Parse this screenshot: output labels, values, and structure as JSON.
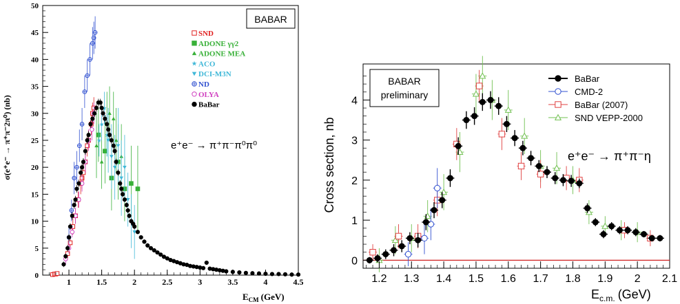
{
  "chart_data": [
    {
      "type": "scatter",
      "badge": "BABAR",
      "ylabel": "σ(e⁺e⁻ → π⁺π⁻2π⁰) (nb)",
      "xlabel": "E_CM (GeV)",
      "xlabel_main": "E",
      "xlabel_sub": "CM",
      "xlabel_unit": "(GeV)",
      "xlim": [
        0.6,
        4.5
      ],
      "ylim": [
        0,
        50
      ],
      "xticks": [
        "1",
        "1.5",
        "2",
        "2.5",
        "3",
        "3.5",
        "4",
        "4.5"
      ],
      "xtick_values": [
        1,
        1.5,
        2,
        2.5,
        3,
        3.5,
        4,
        4.5
      ],
      "yticks": [
        "0",
        "5",
        "10",
        "15",
        "20",
        "25",
        "30",
        "35",
        "40",
        "45",
        "50"
      ],
      "ytick_values": [
        0,
        5,
        10,
        15,
        20,
        25,
        30,
        35,
        40,
        45,
        50
      ],
      "reaction": "e⁺e⁻ → π⁺π⁻π⁰π⁰",
      "legend": [
        {
          "name": "SND",
          "marker": "□",
          "color": "#e02020"
        },
        {
          "name": "ADONE γγ2",
          "marker": "■",
          "color": "#38b038"
        },
        {
          "name": "ADONE MEA",
          "marker": "▲",
          "color": "#38b038"
        },
        {
          "name": "ACO",
          "marker": "★",
          "color": "#40b8d8"
        },
        {
          "name": "DCI-M3N",
          "marker": "▼",
          "color": "#40b8d8"
        },
        {
          "name": "ND",
          "marker": "⊕",
          "color": "#3050d0"
        },
        {
          "name": "OLYA",
          "marker": "○",
          "color": "#d040c0"
        },
        {
          "name": "BaBar",
          "marker": "●",
          "color": "#000000"
        }
      ],
      "series": [
        {
          "name": "SND",
          "color": "#e02020",
          "x": [
            0.75,
            0.78,
            0.8,
            0.82,
            0.98,
            1.02,
            1.06,
            1.1,
            1.14,
            1.18,
            1.2,
            1.22,
            1.25,
            1.28,
            1.3,
            1.34,
            1.36,
            1.38
          ],
          "y": [
            0.1,
            0.2,
            0.2,
            0.3,
            4,
            6,
            9,
            11,
            14,
            17,
            18,
            19,
            21,
            24,
            25,
            28,
            30,
            31
          ],
          "err": [
            0.1,
            0.1,
            0.1,
            0.2,
            1,
            1,
            1.5,
            1.5,
            1.5,
            2,
            2,
            2,
            2,
            2,
            2,
            2,
            2,
            2
          ]
        },
        {
          "name": "ADONE γγ2",
          "color": "#38b038",
          "x": [
            1.45,
            1.55,
            1.65,
            1.75,
            1.85,
            1.95,
            2.05
          ],
          "y": [
            26,
            23,
            18,
            21,
            16,
            17,
            16
          ],
          "err": [
            5,
            6,
            6,
            7,
            6,
            7,
            8
          ]
        },
        {
          "name": "ADONE MEA",
          "color": "#38b038",
          "x": [
            1.42,
            1.5,
            1.58,
            1.62,
            1.68,
            1.72,
            1.8
          ],
          "y": [
            24,
            21,
            28,
            30,
            29,
            25,
            22
          ],
          "err": [
            6,
            5,
            6,
            5,
            5,
            6,
            6
          ]
        },
        {
          "name": "ACO",
          "color": "#40b8d8",
          "x": [
            1.46,
            1.5,
            1.54,
            1.58
          ],
          "y": [
            25,
            28,
            31,
            26
          ],
          "err": [
            3,
            3,
            3,
            4
          ]
        },
        {
          "name": "DCI-M3N",
          "color": "#40b8d8",
          "x": [
            1.6,
            1.65,
            1.7,
            1.75,
            1.8,
            1.85,
            1.9,
            1.95,
            2.0
          ],
          "y": [
            25,
            22,
            20,
            24,
            18,
            20,
            14,
            10,
            8
          ],
          "err": [
            6,
            6,
            6,
            7,
            7,
            6,
            5,
            5,
            5
          ]
        },
        {
          "name": "ND",
          "color": "#3050d0",
          "x": [
            1.0,
            1.04,
            1.08,
            1.12,
            1.16,
            1.2,
            1.24,
            1.28,
            1.32,
            1.36,
            1.38,
            1.4
          ],
          "y": [
            7,
            12,
            18,
            20,
            24,
            28,
            34,
            37,
            40,
            43,
            44,
            45
          ],
          "err": [
            2,
            2,
            3,
            3,
            3,
            3,
            3,
            3,
            3,
            3,
            3,
            3
          ]
        },
        {
          "name": "OLYA",
          "color": "#d040c0",
          "x": [
            0.95,
            1.0,
            1.05,
            1.1,
            1.15,
            1.2,
            1.25,
            1.3,
            1.35,
            1.38
          ],
          "y": [
            3,
            5,
            8,
            11,
            14,
            17,
            21,
            25,
            27,
            30
          ],
          "err": [
            1,
            1,
            1,
            1.5,
            1.5,
            1.5,
            2,
            2,
            2,
            2
          ]
        },
        {
          "name": "BaBar",
          "color": "#000000",
          "x": [
            0.92,
            0.95,
            0.98,
            1.0,
            1.02,
            1.05,
            1.08,
            1.1,
            1.12,
            1.15,
            1.18,
            1.2,
            1.22,
            1.25,
            1.28,
            1.3,
            1.33,
            1.36,
            1.39,
            1.42,
            1.45,
            1.48,
            1.5,
            1.52,
            1.55,
            1.58,
            1.6,
            1.62,
            1.65,
            1.68,
            1.7,
            1.72,
            1.75,
            1.78,
            1.8,
            1.82,
            1.85,
            1.88,
            1.9,
            1.92,
            1.95,
            1.98,
            2.0,
            2.05,
            2.1,
            2.15,
            2.2,
            2.25,
            2.3,
            2.35,
            2.4,
            2.45,
            2.5,
            2.55,
            2.6,
            2.65,
            2.7,
            2.75,
            2.8,
            2.85,
            2.9,
            2.95,
            3.0,
            3.05,
            3.1,
            3.15,
            3.2,
            3.25,
            3.3,
            3.35,
            3.4,
            3.5,
            3.6,
            3.7,
            3.8,
            3.9,
            4.0,
            4.1,
            4.2,
            4.3,
            4.4,
            4.5
          ],
          "y": [
            2,
            3.5,
            5,
            7,
            9,
            11,
            13,
            14,
            16,
            17,
            19,
            20,
            21,
            23,
            25,
            26,
            28,
            29,
            30,
            31,
            32,
            32,
            31,
            30,
            29,
            28,
            27,
            26,
            25,
            24,
            23,
            21,
            19,
            17,
            16,
            15,
            14,
            13,
            12,
            11,
            10,
            9.5,
            9,
            8,
            7,
            6.2,
            5.5,
            5,
            4.6,
            4.2,
            3.8,
            3.4,
            3.1,
            2.8,
            2.6,
            2.4,
            2.2,
            2.0,
            1.9,
            1.7,
            1.6,
            1.5,
            1.4,
            1.3,
            2.3,
            1.2,
            1.1,
            1.0,
            0.9,
            0.8,
            0.7,
            0.6,
            0.5,
            0.4,
            0.35,
            0.3,
            0.25,
            0.2,
            0.2,
            0.15,
            0.1,
            0.1
          ],
          "err": [
            0.5,
            0.5,
            0.6,
            0.6,
            0.6,
            0.7,
            0.7,
            0.7,
            0.7,
            0.7,
            0.7,
            0.7,
            0.7,
            0.7,
            0.7,
            0.7,
            0.7,
            0.7,
            0.7,
            0.7,
            0.7,
            0.7,
            0.7,
            0.7,
            0.7,
            0.7,
            0.7,
            0.7,
            0.7,
            0.7,
            0.7,
            0.6,
            0.6,
            0.6,
            0.6,
            0.6,
            0.5,
            0.5,
            0.5,
            0.5,
            0.5,
            0.5,
            0.5,
            0.4,
            0.4,
            0.4,
            0.4,
            0.3,
            0.3,
            0.3,
            0.3,
            0.3,
            0.3,
            0.3,
            0.2,
            0.2,
            0.2,
            0.2,
            0.2,
            0.2,
            0.2,
            0.2,
            0.2,
            0.2,
            0.3,
            0.2,
            0.2,
            0.2,
            0.2,
            0.1,
            0.1,
            0.1,
            0.1,
            0.1,
            0.1,
            0.1,
            0.1,
            0.1,
            0.1,
            0.1,
            0.1,
            0.1
          ]
        }
      ]
    },
    {
      "type": "scatter",
      "badge_lines": [
        "BABAR",
        "preliminary"
      ],
      "ylabel": "Cross section, nb",
      "xlabel": "E_c.m. (GeV)",
      "xlabel_main": "E",
      "xlabel_sub": "c.m.",
      "xlabel_unit": "(GeV)",
      "xlim": [
        1.15,
        2.1
      ],
      "ylim": [
        -0.2,
        4.9
      ],
      "xticks": [
        "1.2",
        "1.3",
        "1.4",
        "1.5",
        "1.6",
        "1.7",
        "1.8",
        "1.9",
        "2",
        "2.1"
      ],
      "xtick_values": [
        1.2,
        1.3,
        1.4,
        1.5,
        1.6,
        1.7,
        1.8,
        1.9,
        2.0,
        2.1
      ],
      "yticks": [
        "0",
        "1",
        "2",
        "3",
        "4"
      ],
      "ytick_values": [
        0,
        1,
        2,
        3,
        4
      ],
      "reaction": "e⁺e⁻ → π⁺π⁻η",
      "zero_line_color": "#d02020",
      "legend": [
        {
          "name": "BaBar",
          "marker": "●",
          "color": "#000000"
        },
        {
          "name": "CMD-2",
          "marker": "○",
          "color": "#3050d0"
        },
        {
          "name": "BaBar (2007)",
          "marker": "□",
          "color": "#e04040"
        },
        {
          "name": "SND VEPP-2000",
          "marker": "△",
          "color": "#70c050"
        }
      ],
      "series": [
        {
          "name": "BaBar",
          "color": "#000000",
          "x": [
            1.17,
            1.195,
            1.22,
            1.245,
            1.27,
            1.295,
            1.32,
            1.345,
            1.37,
            1.395,
            1.42,
            1.445,
            1.47,
            1.495,
            1.52,
            1.545,
            1.57,
            1.595,
            1.62,
            1.645,
            1.67,
            1.695,
            1.72,
            1.745,
            1.77,
            1.795,
            1.82,
            1.845,
            1.87,
            1.895,
            1.92,
            1.945,
            1.97,
            1.995,
            2.02,
            2.045,
            2.07
          ],
          "y": [
            0.0,
            0.05,
            0.15,
            0.25,
            0.35,
            0.55,
            0.5,
            0.95,
            1.25,
            1.5,
            2.05,
            2.85,
            3.5,
            3.6,
            3.95,
            4.0,
            3.85,
            3.4,
            3.05,
            2.8,
            2.55,
            2.35,
            2.2,
            2.05,
            2.0,
            1.98,
            1.92,
            1.3,
            0.95,
            0.65,
            0.85,
            0.75,
            0.75,
            0.7,
            0.65,
            0.55,
            0.55
          ],
          "err": [
            0.08,
            0.1,
            0.12,
            0.15,
            0.15,
            0.15,
            0.18,
            0.2,
            0.2,
            0.2,
            0.22,
            0.22,
            0.22,
            0.22,
            0.22,
            0.22,
            0.22,
            0.2,
            0.2,
            0.18,
            0.18,
            0.15,
            0.15,
            0.15,
            0.15,
            0.15,
            0.12,
            0.12,
            0.1,
            0.1,
            0.1,
            0.1,
            0.1,
            0.1,
            0.08,
            0.08,
            0.08
          ]
        },
        {
          "name": "CMD-2",
          "color": "#3050d0",
          "x": [
            1.29,
            1.34,
            1.36,
            1.38
          ],
          "y": [
            0.15,
            0.55,
            0.9,
            1.8
          ],
          "err": [
            0.3,
            0.4,
            0.4,
            0.5
          ]
        },
        {
          "name": "BaBar (2007)",
          "color": "#e04040",
          "x": [
            1.18,
            1.26,
            1.32,
            1.38,
            1.44,
            1.51,
            1.58,
            1.64,
            1.7,
            1.78,
            1.82,
            1.96,
            2.04
          ],
          "y": [
            0.2,
            0.6,
            0.6,
            1.5,
            2.9,
            4.35,
            3.15,
            2.35,
            2.15,
            2.05,
            2.0,
            0.75,
            0.55
          ],
          "err": [
            0.2,
            0.3,
            0.3,
            0.4,
            0.4,
            0.4,
            0.4,
            0.35,
            0.35,
            0.3,
            0.3,
            0.2,
            0.2
          ]
        },
        {
          "name": "SND VEPP-2000",
          "color": "#70c050",
          "x": [
            1.2,
            1.25,
            1.3,
            1.35,
            1.4,
            1.45,
            1.5,
            1.52,
            1.55,
            1.6,
            1.65,
            1.7,
            1.75,
            1.8,
            1.85,
            1.9,
            1.95,
            2.0
          ],
          "y": [
            0.0,
            0.5,
            0.55,
            1.1,
            1.7,
            2.7,
            4.15,
            4.6,
            4.0,
            3.75,
            3.1,
            2.35,
            2.3,
            2.0,
            1.2,
            0.85,
            0.75,
            0.7
          ],
          "err": [
            0.3,
            0.35,
            0.35,
            0.4,
            0.45,
            0.5,
            0.5,
            0.5,
            0.5,
            0.5,
            0.45,
            0.4,
            0.4,
            0.35,
            0.3,
            0.25,
            0.25,
            0.25
          ]
        }
      ]
    }
  ]
}
